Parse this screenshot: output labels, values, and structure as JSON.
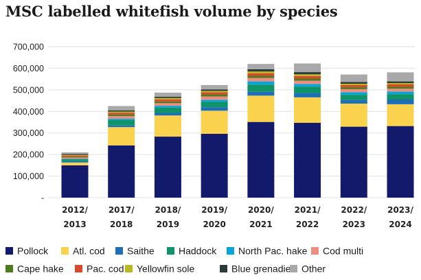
{
  "chart_data": {
    "type": "bar",
    "stacked": true,
    "title": "MSC labelled whitefish volume by species",
    "xlabel": "",
    "ylabel": "",
    "ylim": [
      0,
      700000
    ],
    "yticks": [
      0,
      100000,
      200000,
      300000,
      400000,
      500000,
      600000,
      700000
    ],
    "ytick_labels": [
      "-",
      "100,000",
      "200,000",
      "300,000",
      "400,000",
      "500,000",
      "600,000",
      "700,000"
    ],
    "grid": true,
    "legend_position": "bottom",
    "categories": [
      [
        "2012/",
        "2013"
      ],
      [
        "2017/",
        "2018"
      ],
      [
        "2018/",
        "2019"
      ],
      [
        "2019/",
        "2020"
      ],
      [
        "2020/",
        "2021"
      ],
      [
        "2021/",
        "2022"
      ],
      [
        "2022/",
        "2023"
      ],
      [
        "2023/",
        "2024"
      ]
    ],
    "series": [
      {
        "name": "Pollock",
        "color": "#131a6b",
        "values": [
          150000,
          242000,
          283000,
          296000,
          351000,
          347000,
          329000,
          332000
        ]
      },
      {
        "name": "Atl. cod",
        "color": "#fbd24e",
        "values": [
          13000,
          85000,
          98000,
          107000,
          122000,
          118000,
          107000,
          101000
        ]
      },
      {
        "name": "Saithe",
        "color": "#1f6fb8",
        "values": [
          6000,
          8000,
          12000,
          16000,
          18000,
          20000,
          18000,
          22000
        ]
      },
      {
        "name": "Haddock",
        "color": "#0f9469",
        "values": [
          10000,
          25000,
          25000,
          25000,
          33000,
          30000,
          23000,
          25000
        ]
      },
      {
        "name": "North Pac. hake",
        "color": "#0aa5d8",
        "values": [
          2000,
          6000,
          8000,
          10000,
          15000,
          12000,
          12000,
          12000
        ]
      },
      {
        "name": "Cod multi",
        "color": "#ee8c80",
        "values": [
          5000,
          12000,
          12000,
          15000,
          16000,
          15000,
          14000,
          13000
        ]
      },
      {
        "name": "Cape hake",
        "color": "#4f7a1f",
        "values": [
          3000,
          8000,
          8000,
          10000,
          10000,
          10000,
          9000,
          9000
        ]
      },
      {
        "name": "Pac. cod",
        "color": "#d94a2b",
        "values": [
          6000,
          8000,
          10000,
          10000,
          12000,
          12000,
          10000,
          11000
        ]
      },
      {
        "name": "Yellowfin sole",
        "color": "#b8b81f",
        "values": [
          3000,
          5000,
          6000,
          6000,
          8000,
          8000,
          6000,
          6000
        ]
      },
      {
        "name": "Blue grenadier",
        "color": "#2b3a36",
        "values": [
          4000,
          6000,
          6000,
          7000,
          10000,
          10000,
          8000,
          8000
        ]
      },
      {
        "name": "Other",
        "color": "#a9a9ab",
        "values": [
          8000,
          20000,
          19000,
          20000,
          25000,
          40000,
          35000,
          42000
        ]
      }
    ]
  }
}
